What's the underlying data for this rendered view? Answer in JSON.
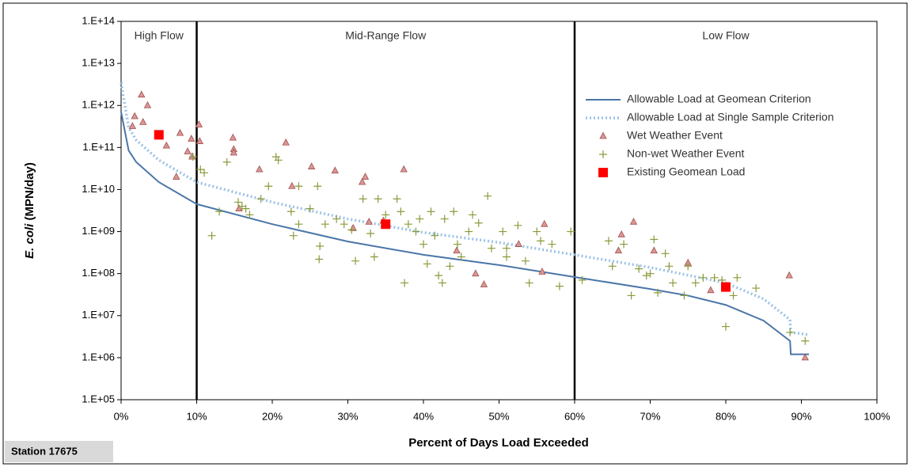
{
  "chart_data": {
    "type": "scatter",
    "ylog": true,
    "legend": "upper right",
    "xlabel": "Percent of Days Load Exceeded",
    "ylabel_italic": "E. coli",
    "ylabel_rest": " (MPN/day)",
    "footnote": "Station 17675",
    "xlim": [
      0,
      100
    ],
    "xticks": [
      {
        "value": 0,
        "label": "0%"
      },
      {
        "value": 10,
        "label": "10%"
      },
      {
        "value": 20,
        "label": "20%"
      },
      {
        "value": 30,
        "label": "30%"
      },
      {
        "value": 40,
        "label": "40%"
      },
      {
        "value": 50,
        "label": "50%"
      },
      {
        "value": 60,
        "label": "60%"
      },
      {
        "value": 70,
        "label": "70%"
      },
      {
        "value": 80,
        "label": "80%"
      },
      {
        "value": 90,
        "label": "90%"
      },
      {
        "value": 100,
        "label": "100%"
      }
    ],
    "ylim": [
      100000,
      100000000000000
    ],
    "yticks": [
      {
        "value": 100000,
        "label": "1.E+05"
      },
      {
        "value": 1000000,
        "label": "1.E+06"
      },
      {
        "value": 10000000,
        "label": "1.E+07"
      },
      {
        "value": 100000000,
        "label": "1.E+08"
      },
      {
        "value": 1000000000,
        "label": "1.E+09"
      },
      {
        "value": 10000000000,
        "label": "1.E+10"
      },
      {
        "value": 100000000000,
        "label": "1.E+11"
      },
      {
        "value": 1000000000000,
        "label": "1.E+12"
      },
      {
        "value": 10000000000000,
        "label": "1.E+13"
      },
      {
        "value": 100000000000000,
        "label": "1.E+14"
      }
    ],
    "regions": [
      {
        "label": "High Flow",
        "start": 0,
        "end": 10
      },
      {
        "label": "Mid-Range Flow",
        "start": 10,
        "end": 60
      },
      {
        "label": "Low Flow",
        "start": 60,
        "end": 100
      }
    ],
    "series": [
      {
        "name": "Allowable Load at Geomean Criterion",
        "style": "line",
        "color": "#4a76a8",
        "x": [
          0,
          1,
          2,
          5,
          10,
          20,
          30,
          40,
          50,
          60,
          70,
          75,
          80,
          85,
          88.5,
          88.6,
          91
        ],
        "values": [
          700000000000,
          85000000000,
          45000000000,
          15000000000,
          4500000000,
          1500000000,
          580000000,
          280000000,
          160000000,
          83000000,
          43000000,
          30000000,
          18000000,
          7600000,
          2500000,
          1200000,
          1200000
        ]
      },
      {
        "name": "Allowable Load at Single Sample Criterion",
        "style": "dotted",
        "color": "#9dc3e6",
        "x": [
          0,
          1,
          2,
          5,
          10,
          20,
          30,
          40,
          50,
          60,
          70,
          80,
          85,
          88.5,
          88.6,
          91
        ],
        "values": [
          3500000000000,
          300000000000,
          150000000000,
          50000000000,
          15000000000,
          5000000000,
          2000000000,
          950000000,
          550000000,
          280000000,
          140000000,
          60000000,
          25000000,
          8000000,
          4000000,
          3500000
        ]
      },
      {
        "name": "Wet Weather Event",
        "style": "triangle",
        "color": "#d99694",
        "x": [
          2.7,
          3.5,
          1.8,
          2.9,
          1.5,
          7.8,
          10.3,
          9.3,
          10.4,
          6,
          8.8,
          9.4,
          14.8,
          14.9,
          14.9,
          21.8,
          18.3,
          25.2,
          28.3,
          32.3,
          31.9,
          37.4,
          22.6,
          7.3,
          30.7,
          32.8,
          34.7,
          44.4,
          46.9,
          48,
          52.6,
          56,
          55.7,
          66.2,
          67.8,
          65.8,
          70.5,
          75,
          78,
          88.4,
          90.5,
          15.6
        ],
        "values": [
          1800000000000,
          1000000000000,
          550000000000,
          400000000000,
          320000000000,
          220000000000,
          350000000000,
          160000000000,
          140000000000,
          110000000000,
          80000000000,
          60000000000,
          170000000000,
          90000000000,
          75000000000,
          130000000000,
          30000000000,
          35000000000,
          28000000000,
          20000000000,
          15000000000,
          30000000000,
          12000000000,
          20000000000,
          1200000000,
          1700000000,
          1800000000,
          350000000,
          100000000,
          55000000,
          500000000,
          1500000000,
          110000000,
          850000000,
          1700000000,
          350000000,
          350000000,
          180000000,
          40000000,
          90000000,
          1000000,
          3500000000
        ]
      },
      {
        "name": "Non-wet Weather Event",
        "style": "plus",
        "color": "#8a9a3a",
        "x": [
          9.5,
          10.5,
          11,
          14,
          13,
          12,
          15.5,
          16,
          16.5,
          17,
          18.5,
          19.5,
          20.5,
          20.8,
          22.5,
          22.8,
          23.5,
          23.5,
          25,
          26,
          26.3,
          26.2,
          27,
          28.5,
          29.5,
          30.5,
          31,
          32,
          33,
          33.5,
          34,
          35,
          36.5,
          37,
          37.5,
          38,
          39,
          39.5,
          40,
          40.5,
          41,
          41.5,
          42,
          42.5,
          42.8,
          43.5,
          44,
          44.5,
          45,
          46,
          46.5,
          47.3,
          48.5,
          49,
          50.5,
          51,
          51,
          52.5,
          53.5,
          54,
          55,
          55.5,
          57,
          58,
          59.5,
          61,
          64.5,
          65,
          66.5,
          67.5,
          68.5,
          69.5,
          70,
          70.5,
          71,
          72,
          72.5,
          73,
          74.5,
          75,
          76,
          77,
          78.5,
          79.5,
          80,
          81,
          81.5,
          84,
          88.5,
          90.5
        ],
        "values": [
          60000000000,
          30000000000,
          25000000000,
          45000000000,
          3000000000,
          800000000,
          5000000000,
          4000000000,
          3500000000,
          2500000000,
          6000000000,
          12000000000,
          60000000000,
          50000000000,
          3000000000,
          800000000,
          12000000000,
          1500000000,
          3500000000,
          12000000000,
          450000000,
          220000000,
          1500000000,
          2000000000,
          1500000000,
          1100000000,
          200000000,
          6000000000,
          900000000,
          250000000,
          6000000000,
          2500000000,
          6000000000,
          3000000000,
          60000000,
          1500000000,
          1000000000,
          2000000000,
          500000000,
          170000000,
          3000000000,
          800000000,
          90000000,
          60000000,
          2000000000,
          150000000,
          3000000000,
          500000000,
          250000000,
          1000000000,
          2500000000,
          1600000000,
          7000000000,
          400000000,
          1000000000,
          400000000,
          250000000,
          1400000000,
          200000000,
          60000000,
          1000000000,
          600000000,
          500000000,
          50000000,
          1000000000,
          70000000,
          600000000,
          150000000,
          500000000,
          30000000,
          130000000,
          90000000,
          100000000,
          650000000,
          35000000,
          300000000,
          150000000,
          60000000,
          30000000,
          150000000,
          60000000,
          80000000,
          80000000,
          70000000,
          5500000,
          30000000,
          80000000,
          45000000,
          4000000,
          2500000
        ]
      },
      {
        "name": "Existing Geomean Load",
        "style": "square",
        "color": "#ff0000",
        "x": [
          5,
          35,
          80
        ],
        "values": [
          200000000000,
          1500000000,
          48000000
        ]
      }
    ]
  }
}
